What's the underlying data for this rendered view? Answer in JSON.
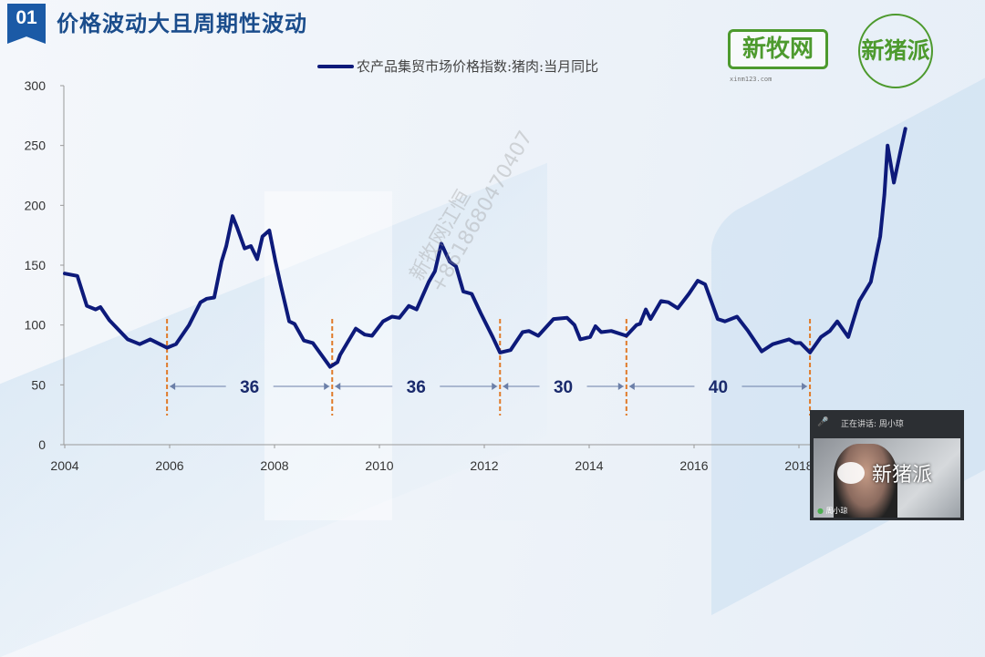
{
  "slide": {
    "section_number": "01",
    "title": "价格波动大且周期性波动",
    "logos": [
      {
        "text": "新牧网",
        "subtext": "xinm123.com"
      },
      {
        "text": "新猪派"
      }
    ],
    "watermark": [
      "新牧网江恒",
      "+8618680470407"
    ],
    "brand_color": "#1b5aa6",
    "logo_color": "#4d9a2e"
  },
  "video_overlay": {
    "speaking_label": "正在讲话: 周小琼",
    "watermark_text": "新猪派",
    "participant_name": "周小琼",
    "mic_icon": "microphone-icon"
  },
  "chart_data": {
    "type": "line",
    "title": "",
    "xlabel": "",
    "ylabel": "",
    "xlim": [
      2004,
      2020.15
    ],
    "ylim": [
      0,
      300
    ],
    "x_ticks": [
      2004,
      2006,
      2008,
      2010,
      2012,
      2014,
      2016,
      2018
    ],
    "y_ticks": [
      0,
      50,
      100,
      150,
      200,
      250,
      300
    ],
    "grid": false,
    "legend_position": "top",
    "series": [
      {
        "name": "农产品集贸市场价格指数:猪肉:当月同比",
        "color": "#0d1a7a",
        "x": [
          2004.0,
          2004.24,
          2004.42,
          2004.59,
          2004.68,
          2004.85,
          2005.2,
          2005.43,
          2005.63,
          2005.95,
          2006.12,
          2006.37,
          2006.59,
          2006.71,
          2006.85,
          2006.99,
          2007.08,
          2007.2,
          2007.29,
          2007.43,
          2007.55,
          2007.67,
          2007.77,
          2007.9,
          2008.02,
          2008.12,
          2008.28,
          2008.38,
          2008.56,
          2008.73,
          2009.06,
          2009.2,
          2009.25,
          2009.55,
          2009.72,
          2009.86,
          2010.07,
          2010.24,
          2010.38,
          2010.56,
          2010.71,
          2010.94,
          2011.06,
          2011.18,
          2011.34,
          2011.46,
          2011.6,
          2011.76,
          2011.93,
          2012.16,
          2012.3,
          2012.5,
          2012.73,
          2012.85,
          2013.03,
          2013.32,
          2013.58,
          2013.72,
          2013.83,
          2014.02,
          2014.12,
          2014.23,
          2014.42,
          2014.71,
          2014.9,
          2014.97,
          2015.08,
          2015.17,
          2015.37,
          2015.51,
          2015.69,
          2015.9,
          2016.07,
          2016.21,
          2016.45,
          2016.59,
          2016.82,
          2017.03,
          2017.29,
          2017.5,
          2017.81,
          2017.93,
          2018.03,
          2018.21,
          2018.42,
          2018.59,
          2018.73,
          2018.94,
          2019.15,
          2019.37,
          2019.55,
          2019.63,
          2019.69,
          2019.81,
          2019.93,
          2020.03
        ],
        "y": [
          143,
          141,
          116,
          113,
          115,
          104,
          88,
          84,
          88,
          81,
          84,
          100,
          119,
          122,
          123,
          153,
          166,
          191,
          181,
          164,
          166,
          155,
          174,
          179,
          153,
          133,
          103,
          101,
          87,
          85,
          65,
          69,
          75,
          97,
          92,
          91,
          103,
          107,
          106,
          116,
          113,
          136,
          145,
          168,
          153,
          149,
          128,
          126,
          110,
          90,
          77,
          79,
          94,
          95,
          91,
          105,
          106,
          100,
          88,
          90,
          99,
          94,
          95,
          91,
          100,
          101,
          113,
          105,
          120,
          119,
          114,
          126,
          137,
          134,
          105,
          103,
          107,
          95,
          78,
          84,
          88,
          85,
          85,
          77,
          90,
          95,
          103,
          90,
          120,
          136,
          174,
          209,
          250,
          219,
          244,
          264
        ]
      }
    ],
    "cycle_markers": [
      2005.95,
      2009.1,
      2012.3,
      2014.71,
      2018.21
    ],
    "annotations": [
      {
        "from": 2005.95,
        "to": 2009.1,
        "label": "36"
      },
      {
        "from": 2009.1,
        "to": 2012.3,
        "label": "36"
      },
      {
        "from": 2012.3,
        "to": 2014.71,
        "label": "30"
      },
      {
        "from": 2014.71,
        "to": 2018.21,
        "label": "40"
      }
    ],
    "marker_color": "#e07b2a"
  }
}
